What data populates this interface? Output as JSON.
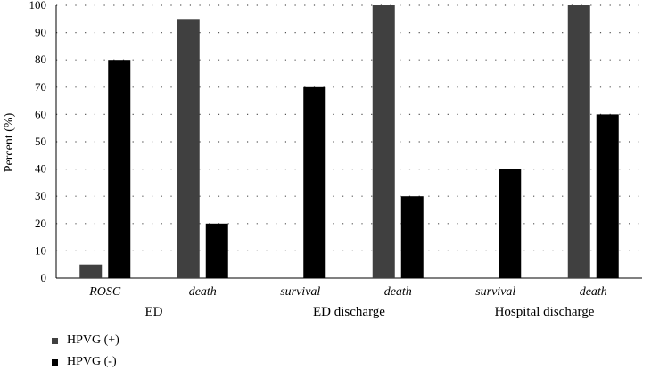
{
  "chart_data": {
    "type": "bar",
    "title": "",
    "ylabel": "Percent (%)",
    "ylim": [
      0,
      100
    ],
    "yticks": [
      0,
      10,
      20,
      30,
      40,
      50,
      60,
      70,
      80,
      90,
      100
    ],
    "grid": true,
    "legend_position": "bottom-left",
    "groups": [
      {
        "label": "ED",
        "categories": [
          "ROSC",
          "death"
        ]
      },
      {
        "label": "ED discharge",
        "categories": [
          "survival",
          "death"
        ]
      },
      {
        "label": "Hospital discharge",
        "categories": [
          "survival",
          "death"
        ]
      }
    ],
    "categories": [
      "ROSC",
      "death",
      "survival",
      "death",
      "survival",
      "death"
    ],
    "series": [
      {
        "name": "HPVG (+)",
        "color": "#404040",
        "values": [
          5,
          95,
          0,
          100,
          0,
          100
        ]
      },
      {
        "name": "HPVG (-)",
        "color": "#000000",
        "values": [
          80,
          20,
          70,
          30,
          40,
          60
        ]
      }
    ]
  }
}
